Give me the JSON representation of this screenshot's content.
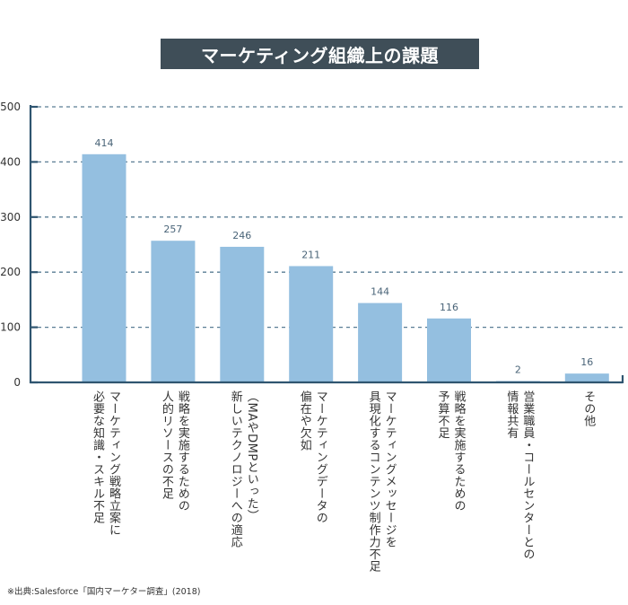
{
  "chart_data": {
    "type": "bar",
    "title": "マーケティング組織上の課題",
    "xlabel": "",
    "ylabel": "",
    "ylim": [
      0,
      500
    ],
    "yticks": [
      0,
      100,
      200,
      300,
      400,
      500
    ],
    "grid": true,
    "legend": "none",
    "categories": [
      "マーケティング戦略立案に\n必要な知識・スキル不足",
      "戦略を実施するための\n人的リソースの不足",
      "（MAやDMPといった）\n新しいテクノロジーへの適応",
      "マーケティングデータの\n偏在や欠如",
      "マーケティングメッセージを\n具現化するコンテンツ制作力不足",
      "戦略を実施するための\n予算不足",
      "営業職員・コールセンターとの\n情報共有",
      "その他"
    ],
    "values": [
      414,
      257,
      246,
      211,
      144,
      116,
      2,
      16
    ],
    "bar_color": "#94bfe0",
    "axis_color": "#2f5570",
    "grid_color": "#5a7d94"
  },
  "source_note": "※出典:Salesforce「国内マーケター調査」(2018)"
}
